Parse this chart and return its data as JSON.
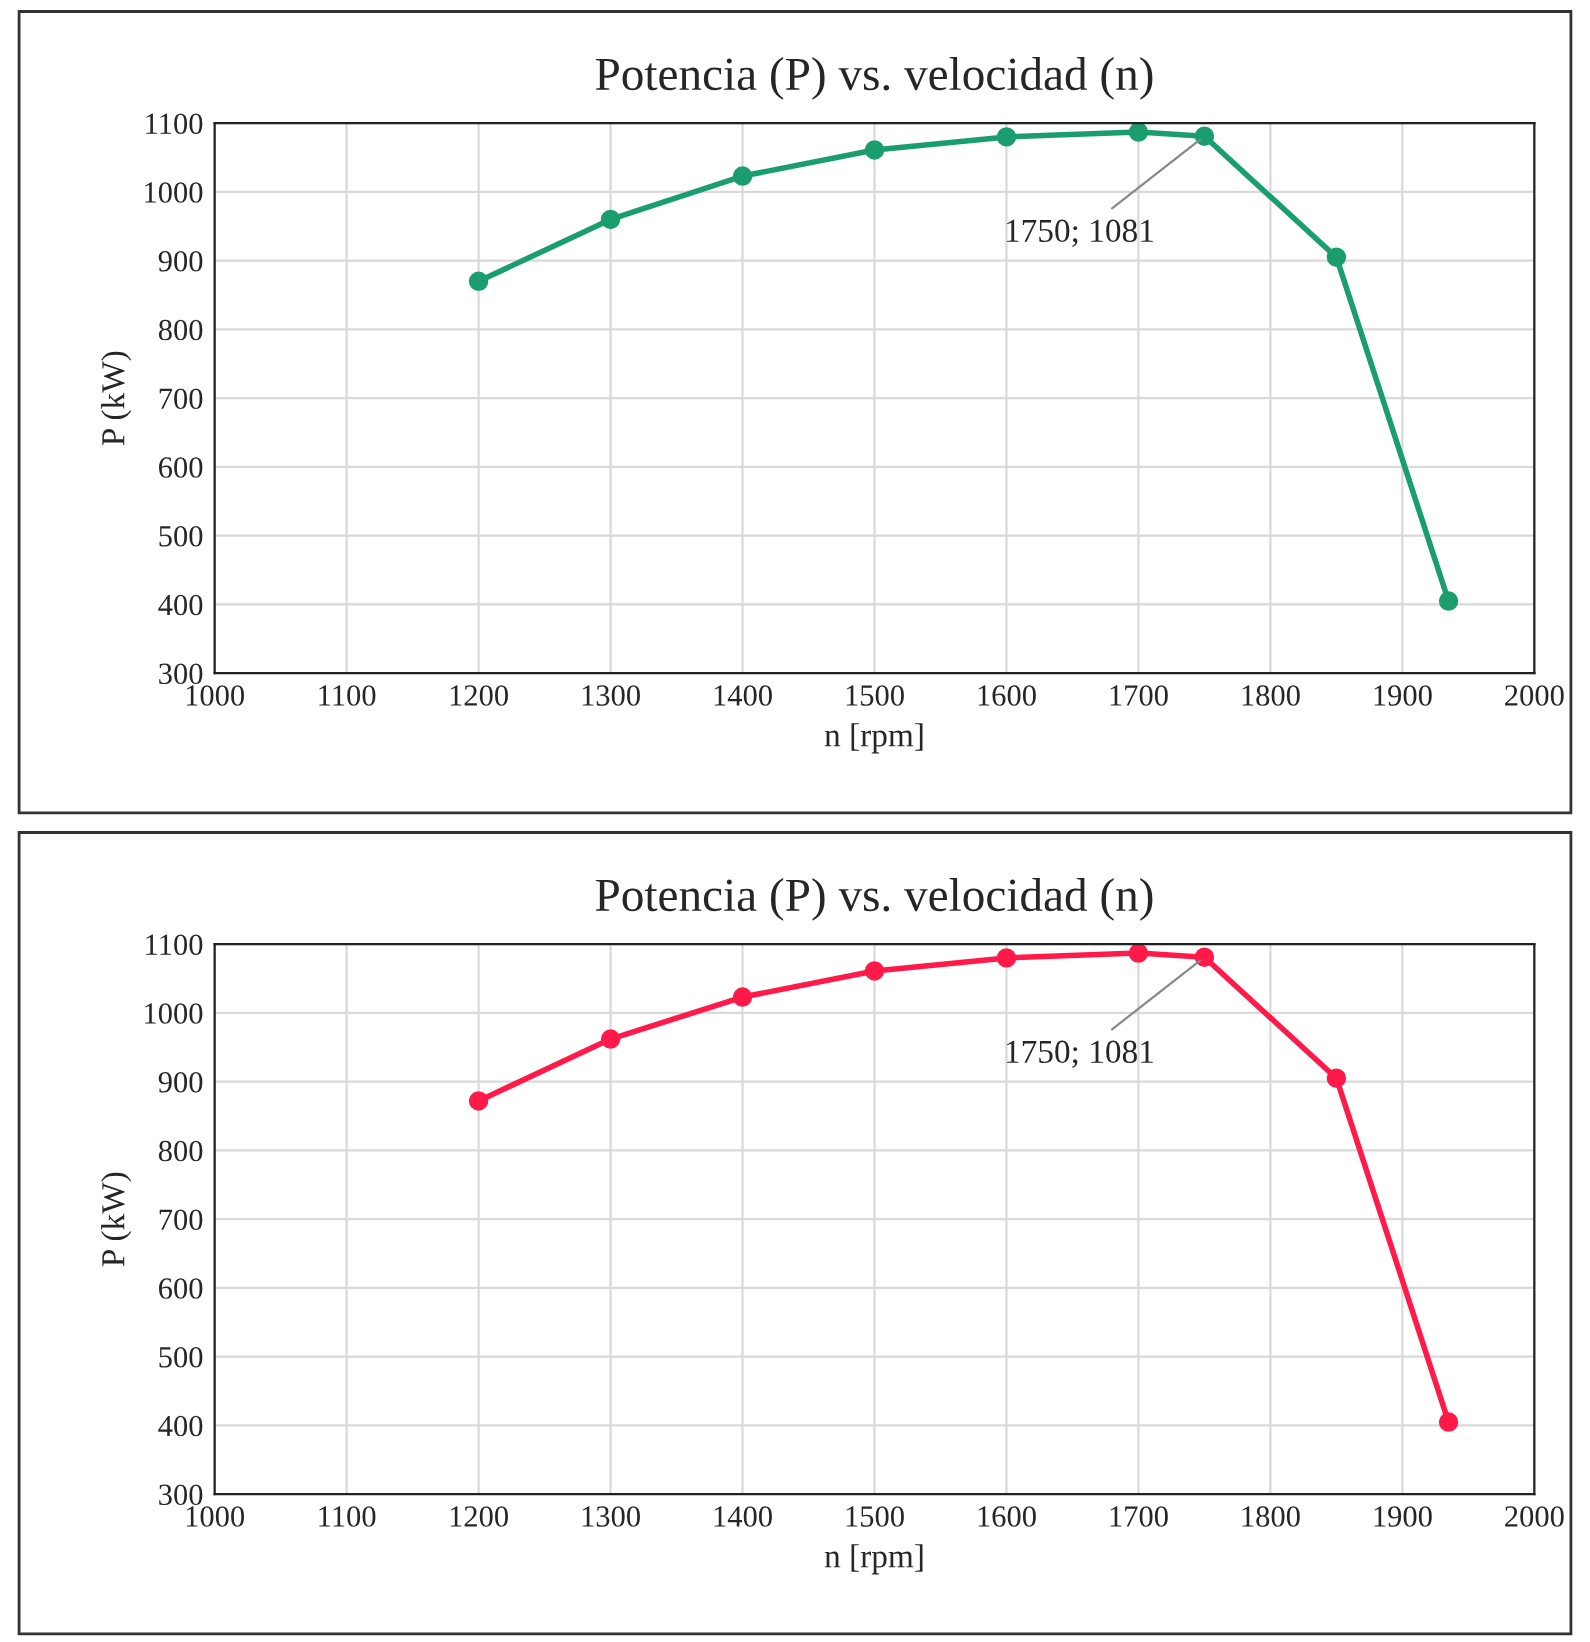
{
  "chart_data": [
    {
      "type": "line",
      "title": "Potencia (P) vs. velocidad (n)",
      "xlabel": "n [rpm]",
      "ylabel": "P (kW)",
      "x": [
        1200,
        1300,
        1400,
        1500,
        1600,
        1700,
        1750,
        1850,
        1935
      ],
      "series": [
        {
          "color": "#1a9e6e",
          "values": [
            870,
            960,
            1023,
            1061,
            1080,
            1087,
            1081,
            905,
            405
          ]
        }
      ],
      "xlim": [
        1000,
        2000
      ],
      "xticks": [
        1000,
        1100,
        1200,
        1300,
        1400,
        1500,
        1600,
        1700,
        1800,
        1900,
        2000
      ],
      "ylim": [
        300,
        1100
      ],
      "yticks": [
        300,
        400,
        500,
        600,
        700,
        800,
        900,
        1000,
        1100
      ],
      "grid": true,
      "marker": "circle",
      "line_style": "solid",
      "annotations": [
        {
          "text": "1750; 1081",
          "x": 1750,
          "y": 1081
        }
      ]
    },
    {
      "type": "line",
      "title": "Potencia (P) vs. velocidad (n)",
      "xlabel": "n [rpm]",
      "ylabel": "P (kW)",
      "x": [
        1200,
        1300,
        1400,
        1500,
        1600,
        1700,
        1750,
        1850,
        1935
      ],
      "series": [
        {
          "color": "#ff1a4a",
          "values": [
            872,
            962,
            1023,
            1061,
            1080,
            1087,
            1081,
            905,
            405
          ]
        }
      ],
      "xlim": [
        1000,
        2000
      ],
      "xticks": [
        1000,
        1100,
        1200,
        1300,
        1400,
        1500,
        1600,
        1700,
        1800,
        1900,
        2000
      ],
      "ylim": [
        300,
        1100
      ],
      "yticks": [
        300,
        400,
        500,
        600,
        700,
        800,
        900,
        1000,
        1100
      ],
      "grid": true,
      "marker": "circle",
      "line_style": "solid",
      "annotations": [
        {
          "text": "1750; 1081",
          "x": 1750,
          "y": 1081
        }
      ]
    }
  ]
}
